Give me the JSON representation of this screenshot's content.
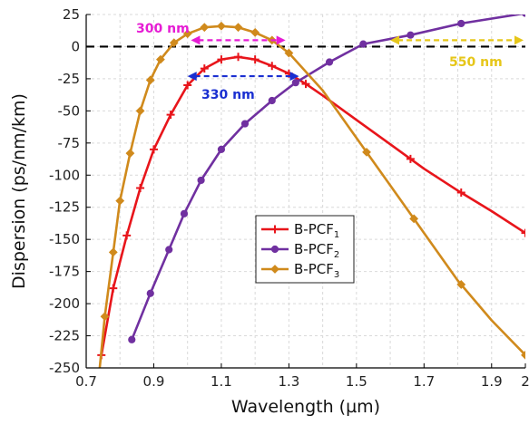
{
  "chart_data": {
    "type": "line",
    "xlabel": "Wavelength (µm)",
    "ylabel": "Dispersion (ps/nm/km)",
    "xlim": [
      0.7,
      2.0
    ],
    "ylim": [
      -250,
      25
    ],
    "xticks": [
      0.7,
      0.9,
      1.1,
      1.3,
      1.5,
      1.7,
      1.9,
      2.0
    ],
    "xtick_labels": [
      "0.7",
      "0.9",
      "1.1",
      "1.3",
      "1.5",
      "1.7",
      "1.9",
      "2"
    ],
    "yticks": [
      25,
      0,
      -25,
      -50,
      -75,
      -100,
      -125,
      -150,
      -175,
      -200,
      -225,
      -250
    ],
    "grid": true,
    "legend_position": "lower-center",
    "series": [
      {
        "name": "B-PCF",
        "subscript": "1",
        "color": "#e8151b",
        "marker": "plus",
        "x": [
          0.745,
          0.78,
          0.82,
          0.86,
          0.9,
          0.95,
          1.0,
          1.05,
          1.1,
          1.15,
          1.2,
          1.25,
          1.3,
          1.35,
          1.4,
          1.5,
          1.6,
          1.7,
          1.8,
          1.9,
          2.0
        ],
        "y": [
          -240,
          -188,
          -147,
          -110,
          -80,
          -53,
          -30,
          -17,
          -10,
          -8,
          -10,
          -15,
          -21,
          -29,
          -38,
          -57,
          -76,
          -95,
          -112,
          -128,
          -145
        ],
        "markers_x": [
          0.745,
          0.78,
          0.82,
          0.86,
          0.9,
          0.95,
          1.0,
          1.05,
          1.1,
          1.15,
          1.2,
          1.25,
          1.3,
          1.35,
          1.66,
          1.81,
          2.0
        ]
      },
      {
        "name": "B-PCF",
        "subscript": "2",
        "color": "#7030a0",
        "marker": "circle",
        "x": [
          0.835,
          0.89,
          0.945,
          0.99,
          1.04,
          1.1,
          1.17,
          1.25,
          1.32,
          1.42,
          1.52,
          1.66,
          1.81,
          2.0
        ],
        "y": [
          -228,
          -192,
          -158,
          -130,
          -104,
          -80,
          -60,
          -42,
          -28,
          -12,
          2,
          9,
          18,
          26
        ],
        "markers_x": [
          0.835,
          0.89,
          0.945,
          0.99,
          1.04,
          1.1,
          1.17,
          1.25,
          1.32,
          1.42,
          1.52,
          1.66,
          1.81,
          2.0
        ]
      },
      {
        "name": "B-PCF",
        "subscript": "3",
        "color": "#d08a1c",
        "marker": "diamond",
        "x": [
          0.74,
          0.755,
          0.78,
          0.8,
          0.83,
          0.86,
          0.89,
          0.92,
          0.96,
          1.0,
          1.05,
          1.1,
          1.15,
          1.2,
          1.25,
          1.3,
          1.4,
          1.5,
          1.6,
          1.7,
          1.8,
          1.9,
          2.0
        ],
        "y": [
          -250,
          -210,
          -160,
          -120,
          -83,
          -50,
          -26,
          -10,
          3,
          10,
          15,
          16,
          15,
          11,
          5,
          -5,
          -34,
          -71,
          -108,
          -145,
          -182,
          -213,
          -240
        ],
        "markers_x": [
          0.755,
          0.78,
          0.8,
          0.83,
          0.86,
          0.89,
          0.92,
          0.96,
          1.0,
          1.05,
          1.1,
          1.15,
          1.2,
          1.25,
          1.3,
          1.53,
          1.67,
          1.81,
          2.0
        ]
      }
    ],
    "annotations": [
      {
        "text": "300 nm",
        "color": "#e61cd4",
        "span": [
          1.01,
          1.29
        ],
        "y": 5
      },
      {
        "text": "330 nm",
        "color": "#1a2fd1",
        "span": [
          1.0,
          1.33
        ],
        "y": -23
      },
      {
        "text": "550 nm",
        "color": "#e6c619",
        "span": [
          1.6,
          2.0
        ],
        "y": 5
      }
    ]
  }
}
